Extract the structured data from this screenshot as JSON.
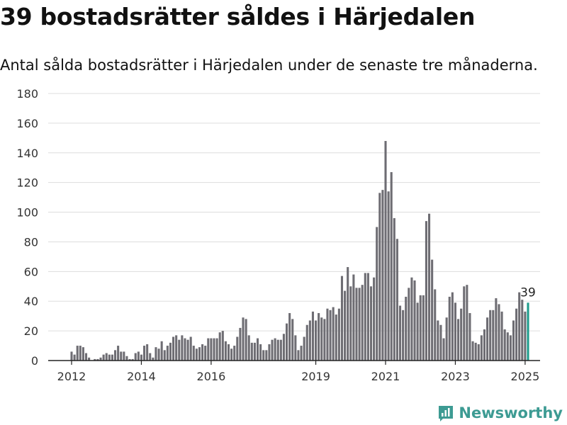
{
  "title": "39 bostadsrätter såldes i Härjedalen",
  "subtitle": "Antal sålda bostadsrätter i Härjedalen under de senaste tre månaderna.",
  "brand": {
    "name": "Newsworthy",
    "icon": "newsworthy-logo-icon"
  },
  "colors": {
    "bar": "#6e6d73",
    "highlight": "#1f9c8c",
    "grid": "#dddddd",
    "axis": "#222222"
  },
  "chart_data": {
    "type": "bar",
    "title": "39 bostadsrätter såldes i Härjedalen",
    "subtitle": "Antal sålda bostadsrätter i Härjedalen under de senaste tre månaderna.",
    "xlabel": "",
    "ylabel": "",
    "ylim": [
      0,
      180
    ],
    "yticks": [
      0,
      20,
      40,
      60,
      80,
      100,
      120,
      140,
      160,
      180
    ],
    "xtick_labels": [
      "2012",
      "2014",
      "2016",
      "2019",
      "2021",
      "2023",
      "2025"
    ],
    "grid": true,
    "start": "2012-01",
    "frequency": "monthly",
    "highlight_label": "39",
    "values": [
      6,
      4,
      10,
      10,
      9,
      5,
      2,
      0,
      1,
      1,
      2,
      4,
      5,
      4,
      4,
      7,
      10,
      6,
      6,
      3,
      1,
      1,
      5,
      6,
      4,
      10,
      11,
      5,
      2,
      9,
      8,
      13,
      7,
      10,
      12,
      16,
      17,
      14,
      17,
      15,
      14,
      16,
      10,
      8,
      9,
      11,
      10,
      15,
      15,
      15,
      15,
      19,
      20,
      13,
      11,
      8,
      10,
      16,
      22,
      29,
      28,
      17,
      12,
      12,
      15,
      11,
      7,
      7,
      11,
      14,
      15,
      14,
      14,
      18,
      25,
      32,
      28,
      17,
      7,
      10,
      16,
      24,
      27,
      33,
      27,
      32,
      29,
      28,
      35,
      34,
      36,
      31,
      35,
      57,
      47,
      63,
      50,
      58,
      49,
      49,
      51,
      59,
      59,
      50,
      56,
      90,
      113,
      115,
      148,
      114,
      127,
      96,
      82,
      37,
      34,
      43,
      49,
      56,
      54,
      39,
      44,
      44,
      94,
      99,
      68,
      48,
      27,
      24,
      15,
      29,
      43,
      46,
      39,
      28,
      35,
      50,
      51,
      32,
      13,
      12,
      11,
      17,
      21,
      29,
      34,
      34,
      42,
      38,
      33,
      21,
      19,
      17,
      27,
      35,
      46,
      41,
      33,
      39
    ],
    "highlight_index": 157
  }
}
